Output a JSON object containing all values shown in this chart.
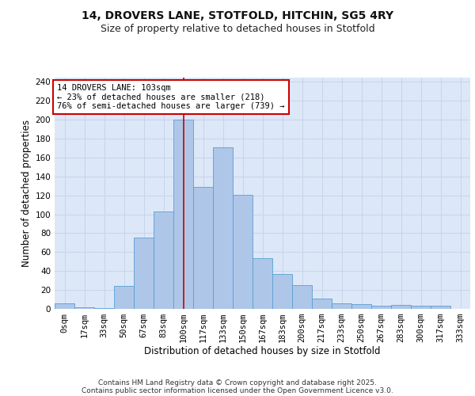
{
  "title_line1": "14, DROVERS LANE, STOTFOLD, HITCHIN, SG5 4RY",
  "title_line2": "Size of property relative to detached houses in Stotfold",
  "xlabel": "Distribution of detached houses by size in Stotfold",
  "ylabel": "Number of detached properties",
  "categories": [
    "0sqm",
    "17sqm",
    "33sqm",
    "50sqm",
    "67sqm",
    "83sqm",
    "100sqm",
    "117sqm",
    "133sqm",
    "150sqm",
    "167sqm",
    "183sqm",
    "200sqm",
    "217sqm",
    "233sqm",
    "250sqm",
    "267sqm",
    "283sqm",
    "300sqm",
    "317sqm",
    "333sqm"
  ],
  "values": [
    6,
    2,
    1,
    24,
    75,
    103,
    200,
    129,
    171,
    121,
    54,
    37,
    25,
    11,
    6,
    5,
    3,
    4,
    3,
    3,
    0
  ],
  "bar_color": "#aec6e8",
  "bar_edge_color": "#5a9fd4",
  "bar_width": 1.0,
  "grid_color": "#c8d4e8",
  "background_color": "#dce8f8",
  "vline_x": 6.0,
  "vline_color": "#cc0000",
  "annotation_title": "14 DROVERS LANE: 103sqm",
  "annotation_line1": "← 23% of detached houses are smaller (218)",
  "annotation_line2": "76% of semi-detached houses are larger (739) →",
  "annotation_box_color": "#ffffff",
  "annotation_box_edge": "#cc0000",
  "yticks": [
    0,
    20,
    40,
    60,
    80,
    100,
    120,
    140,
    160,
    180,
    200,
    220,
    240
  ],
  "ylim": [
    0,
    245
  ],
  "footer_line1": "Contains HM Land Registry data © Crown copyright and database right 2025.",
  "footer_line2": "Contains public sector information licensed under the Open Government Licence v3.0.",
  "title_fontsize": 10,
  "subtitle_fontsize": 9,
  "axis_label_fontsize": 8.5,
  "tick_fontsize": 7.5,
  "footer_fontsize": 6.5
}
